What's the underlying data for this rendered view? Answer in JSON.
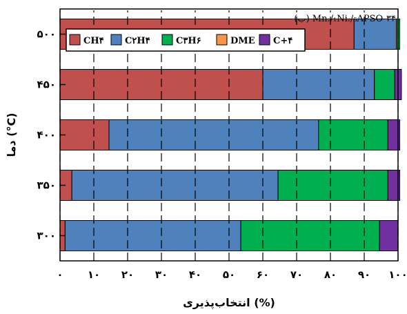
{
  "chart_data": {
    "type": "bar",
    "orientation": "horizontal",
    "stacked": true,
    "panel_label": "(ب) Mn./₁Ni./₅APSO-۳۴",
    "xlabel": "انتخاب‌پذیری (%)",
    "ylabel": "دما (°C)",
    "xlim": [
      0,
      100
    ],
    "xticks": [
      "۰",
      "۱۰",
      "۲۰",
      "۳۰",
      "۴۰",
      "۵۰",
      "۶۰",
      "۷۰",
      "۸۰",
      "۹۰",
      "۱۰۰"
    ],
    "ylim": [
      275,
      525
    ],
    "yticks": [
      "۳۰۰",
      "۳۵۰",
      "۴۰۰",
      "۴۵۰",
      "۵۰۰"
    ],
    "categories": [
      300,
      350,
      400,
      450,
      500
    ],
    "grid": false,
    "legend_position": "top-left",
    "series": [
      {
        "name": "CH۴",
        "color": "#c0504d",
        "values": [
          1.5,
          3.5,
          14.5,
          60,
          87
        ]
      },
      {
        "name": "C۲H۴",
        "color": "#4f81bd",
        "values": [
          52,
          61,
          62,
          33,
          12.5
        ]
      },
      {
        "name": "C۳H۶",
        "color": "#00b050",
        "values": [
          41,
          32.5,
          20.5,
          6,
          1
        ]
      },
      {
        "name": "DME",
        "color": "#f79646",
        "values": [
          0,
          0,
          0,
          0,
          0
        ]
      },
      {
        "name": "C+۴",
        "color": "#7030a0",
        "values": [
          5.5,
          3.5,
          3.5,
          2,
          0
        ]
      }
    ]
  }
}
